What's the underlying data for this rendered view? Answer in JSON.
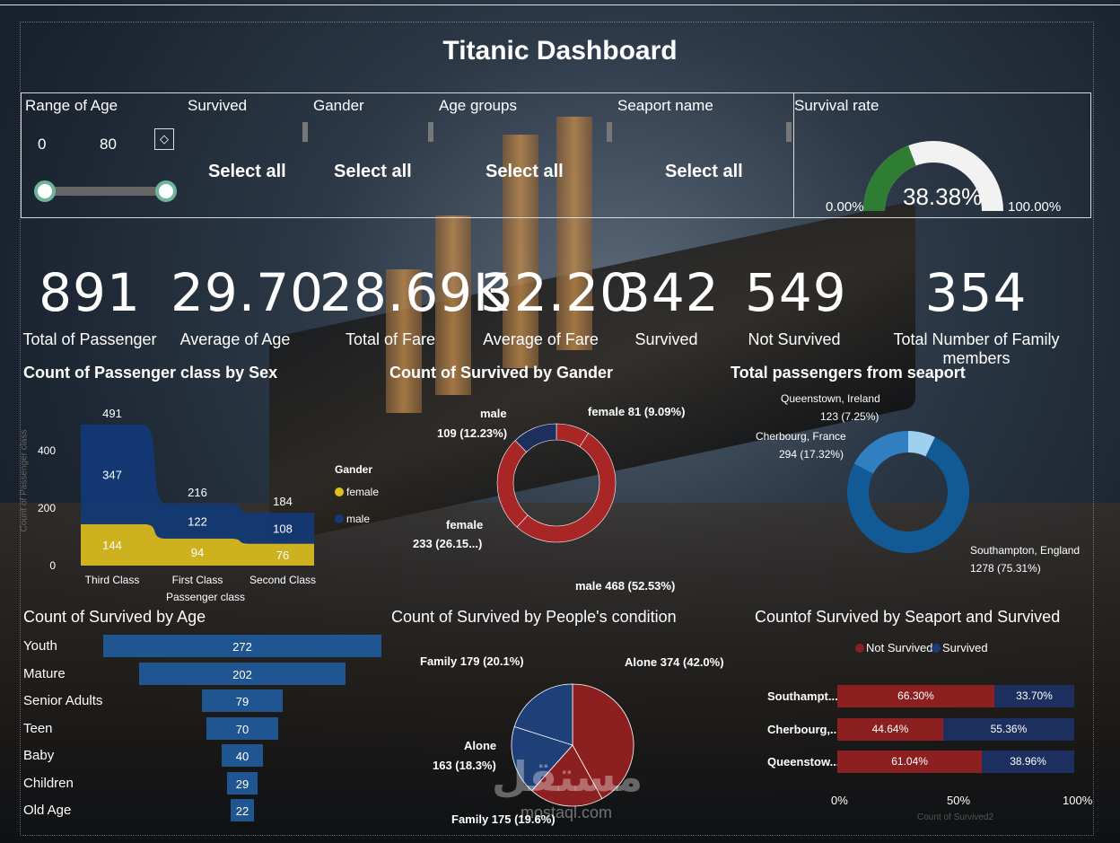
{
  "title": "Titanic Dashboard",
  "slicers": {
    "age": {
      "label": "Range of Age",
      "min": "0",
      "max": "80"
    },
    "survived": {
      "label": "Survived",
      "value": "Select all"
    },
    "gender": {
      "label": "Gander",
      "value": "Select all"
    },
    "age_groups": {
      "label": "Age groups",
      "value": "Select all"
    },
    "seaport": {
      "label": "Seaport name",
      "value": "Select all"
    }
  },
  "gauge": {
    "label": "Survival rate",
    "value": "38.38%",
    "min": "0.00%",
    "max": "100.00%",
    "fraction": 0.3838
  },
  "kpis": [
    {
      "value": "891",
      "label": "Total of Passenger"
    },
    {
      "value": "29.70",
      "label": "Average of Age"
    },
    {
      "value": "28.69K",
      "label": "Total of Fare"
    },
    {
      "value": "32.20",
      "label": "Average of Fare"
    },
    {
      "value": "342",
      "label": "Survived"
    },
    {
      "value": "549",
      "label": "Not Survived"
    },
    {
      "value": "354",
      "label": "Total Number of Family members"
    }
  ],
  "area_chart": {
    "title": "Count of Passenger class by Sex",
    "ylabel": "Count of Passenger class",
    "xlabel": "Passenger class",
    "yticks": [
      "0",
      "200",
      "400"
    ],
    "legend_title": "Gander",
    "legend": [
      "female",
      "male"
    ],
    "colors": {
      "female": "#e0c01e",
      "male": "#123a78"
    }
  },
  "donut_gender": {
    "title": "Count of Survived by Gander",
    "labels": {
      "female_top": "female 81 (9.09%)",
      "male_top_1": "male",
      "male_top_2": "109 (12.23%)",
      "female_left_1": "female",
      "female_left_2": "233 (26.15...)",
      "male_bottom": "male 468 (52.53%)"
    }
  },
  "donut_seaport": {
    "title": "Total passengers from seaport",
    "labels": {
      "q1": "Queenstown, Ireland",
      "q2": "123 (7.25%)",
      "c1": "Cherbourg, France",
      "c2": "294 (17.32%)",
      "s1": "Southampton, England",
      "s2": "1278 (75.31%)"
    }
  },
  "age_chart": {
    "title": "Count of Survived by Age"
  },
  "pie_condition": {
    "title": "Count of Survived by People's condition",
    "labels": {
      "family1": "Family 179 (20.1%)",
      "alone1": "Alone 374 (42.0%)",
      "alone2_1": "Alone",
      "alone2_2": "163 (18.3%)",
      "family2": "Family 175 (19.6%)"
    }
  },
  "seaport_bars": {
    "title": "Countof Survived by Seaport and Survived",
    "legend": [
      "Not Survived",
      "Survived"
    ],
    "axis": [
      "0%",
      "50%",
      "100%"
    ],
    "axis_title": "Count of Survived2"
  },
  "watermark": {
    "arabic": "مستقل",
    "latin": "mostaql.com"
  },
  "chart_data": [
    {
      "type": "area",
      "title": "Count of Passenger class by Sex",
      "xlabel": "Passenger class",
      "ylabel": "Count of Passenger class",
      "categories": [
        "Third Class",
        "First Class",
        "Second Class"
      ],
      "series": [
        {
          "name": "female",
          "values": [
            144,
            94,
            76
          ]
        },
        {
          "name": "male",
          "values": [
            347,
            122,
            108
          ]
        }
      ],
      "totals": [
        491,
        216,
        184
      ],
      "ylim": [
        0,
        500
      ]
    },
    {
      "type": "pie",
      "title": "Count of Survived by Gander",
      "categories": [
        "female",
        "male",
        "female",
        "male"
      ],
      "values": [
        81,
        468,
        233,
        109
      ],
      "percent": [
        9.09,
        52.53,
        26.15,
        12.23
      ]
    },
    {
      "type": "pie",
      "title": "Total passengers from seaport",
      "categories": [
        "Queenstown, Ireland",
        "Southampton, England",
        "Cherbourg, France"
      ],
      "values": [
        123,
        1278,
        294
      ],
      "percent": [
        7.25,
        75.31,
        17.32
      ]
    },
    {
      "type": "bar",
      "title": "Count of Survived by Age",
      "categories": [
        "Youth",
        "Mature",
        "Senior Adults",
        "Teen",
        "Baby",
        "Children",
        "Old Age"
      ],
      "values": [
        272,
        202,
        79,
        70,
        40,
        29,
        22
      ]
    },
    {
      "type": "pie",
      "title": "Count of Survived by People's condition",
      "categories": [
        "Alone",
        "Family",
        "Alone",
        "Family"
      ],
      "values": [
        374,
        175,
        163,
        179
      ],
      "percent": [
        42.0,
        19.6,
        18.3,
        20.1
      ]
    },
    {
      "type": "bar",
      "title": "Countof Survived by Seaport and Survived",
      "categories": [
        "Southampt...",
        "Cherbourg,...",
        "Queenstow..."
      ],
      "series": [
        {
          "name": "Not Survived",
          "values": [
            66.3,
            44.64,
            61.04
          ]
        },
        {
          "name": "Survived",
          "values": [
            33.7,
            55.36,
            38.96
          ]
        }
      ],
      "labels": [
        [
          "66.30%",
          "33.70%"
        ],
        [
          "44.64%",
          "55.36%"
        ],
        [
          "61.04%",
          "38.96%"
        ]
      ],
      "xlim": [
        0,
        100
      ]
    }
  ]
}
